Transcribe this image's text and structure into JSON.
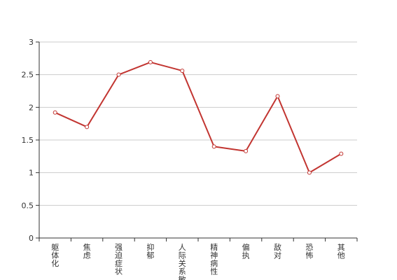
{
  "chart_data": {
    "type": "line",
    "title": "",
    "xlabel": "",
    "ylabel": "",
    "categories": [
      "躯体化",
      "焦虑",
      "强迫症状",
      "抑郁",
      "人际关系敏感",
      "精神病性",
      "偏执",
      "敌对",
      "恐怖",
      "其他"
    ],
    "series": [
      {
        "values": [
          1.92,
          1.7,
          2.5,
          2.69,
          2.56,
          1.4,
          1.33,
          2.17,
          1.0,
          1.29
        ]
      }
    ],
    "ylim": [
      0,
      3
    ],
    "yticks": [
      0,
      0.5,
      1,
      1.5,
      2,
      2.5,
      3
    ],
    "grid": "horizontal",
    "legend": "none",
    "colors": {
      "line": "#c23531",
      "grid": "#cccccc",
      "axis": "#333333",
      "marker_fill": "#ffffff"
    }
  }
}
